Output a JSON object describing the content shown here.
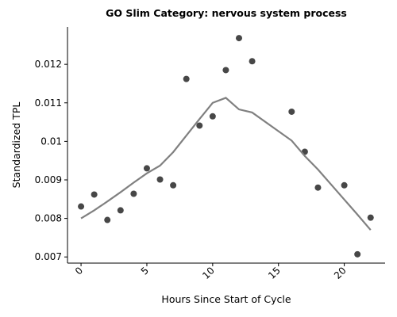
{
  "chart_data": {
    "type": "scatter",
    "title": "GO Slim Category: nervous system process",
    "x_label": "Hours Since Start of Cycle",
    "y_label": "Standardized TPL",
    "x": [
      0,
      1,
      2,
      3,
      4,
      5,
      6,
      7,
      8,
      9,
      10,
      11,
      12,
      13,
      16,
      17,
      18,
      20,
      21,
      22
    ],
    "series": [
      {
        "mode": "markers",
        "color": "#333333",
        "values": [
          0.00831,
          0.00862,
          0.00796,
          0.00821,
          0.00864,
          0.0093,
          0.00901,
          0.00886,
          0.01162,
          0.01041,
          0.01065,
          0.01185,
          0.01268,
          0.01208,
          0.01077,
          0.00973,
          0.0088,
          0.00886,
          0.00707,
          0.00802
        ]
      },
      {
        "mode": "line",
        "color": "#808080",
        "values": [
          0.008,
          0.00821,
          0.00844,
          0.00868,
          0.00893,
          0.00917,
          0.00937,
          0.00972,
          0.01015,
          0.01058,
          0.011,
          0.01113,
          0.01083,
          0.01075,
          0.01002,
          0.00962,
          0.00927,
          0.00849,
          0.0081,
          0.0077
        ]
      }
    ],
    "xlim": [
      -1.03,
      23.1
    ],
    "ylim": [
      0.00684,
      0.01297
    ],
    "xticks": [
      0,
      5,
      10,
      15,
      20
    ],
    "yticks": [
      0.007,
      0.008,
      0.009,
      0.01,
      0.011,
      0.012
    ]
  }
}
